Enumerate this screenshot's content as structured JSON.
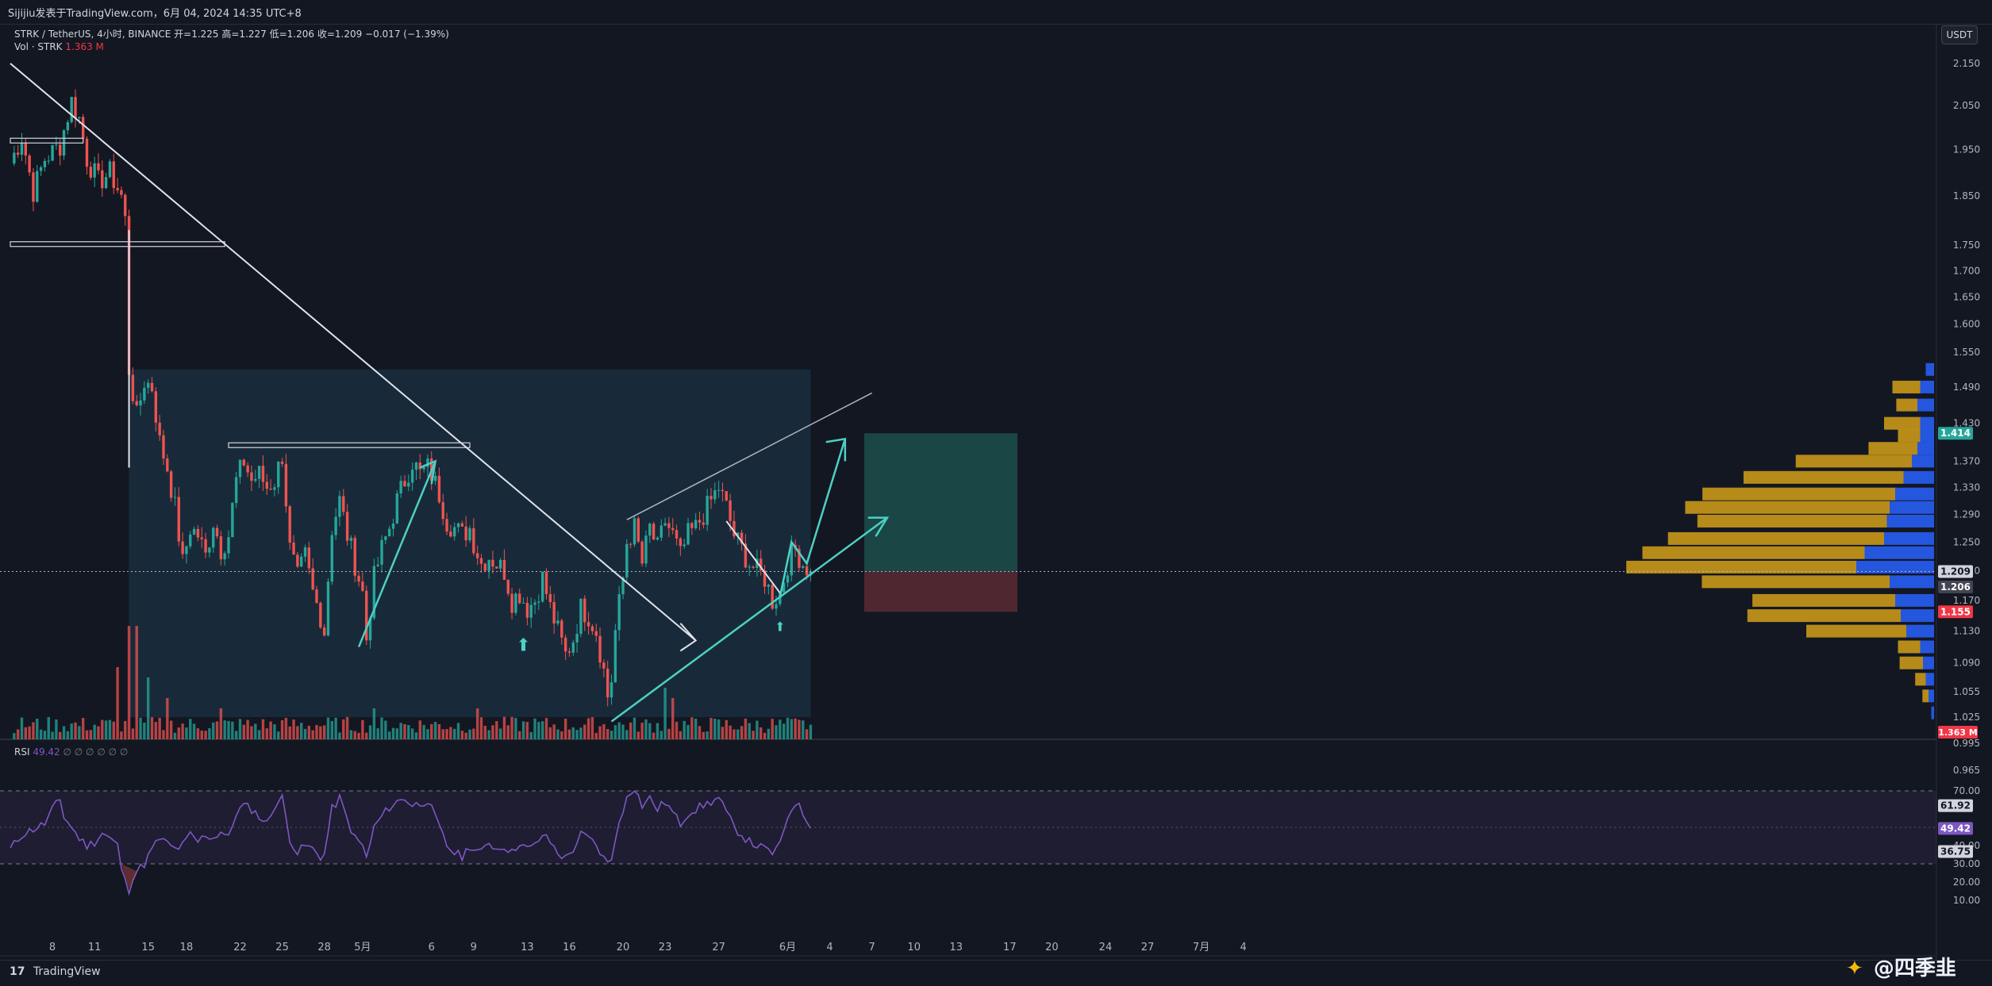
{
  "header": {
    "published": "Sijijiu发表于TradingView.com，6月 04, 2024 14:35 UTC+8"
  },
  "legend": {
    "symbol": "STRK / TetherUS, 4小时, BINANCE",
    "ohlc": "开=1.225  高=1.227  低=1.206  收=1.209  −0.017 (−1.39%)",
    "vol_label": "Vol · STRK",
    "vol_value": "1.363 M",
    "rsi_label": "RSI",
    "rsi_value": "49.42",
    "rsi_extra": "∅  ∅  ∅  ∅  ∅  ∅"
  },
  "currency_button": "USDT",
  "brand": {
    "logo": "17",
    "name": "TradingView"
  },
  "watermark": {
    "icon": "binance-icon",
    "text": "@四季韭"
  },
  "colors": {
    "background": "#131722",
    "up": "#26a69a",
    "down": "#ef5350",
    "range_box": "#1e3a4c",
    "trend_line": "#e0e3eb",
    "cyan_line": "#4dd0c4",
    "rsi_line": "#7e57c2",
    "vp_blue": "#2962ff",
    "vp_gold": "#d4a017",
    "tp_zone": "#1d4f4c",
    "sl_zone": "#5a2a33"
  },
  "chart_data": [
    {
      "type": "candlestick",
      "title": "STRK / TetherUS, 4小时, BINANCE",
      "ylim": [
        0.955,
        2.2
      ],
      "y_scale": "log",
      "y_ticks": [
        "2.150",
        "2.050",
        "1.950",
        "1.850",
        "1.750",
        "1.700",
        "1.650",
        "1.600",
        "1.550",
        "1.490",
        "1.430",
        "1.370",
        "1.330",
        "1.290",
        "1.250",
        "1.210",
        "1.170",
        "1.130",
        "1.090",
        "1.055",
        "1.025",
        "0.995",
        "0.965"
      ],
      "x_ticks": [
        {
          "label": "8",
          "idx": 11
        },
        {
          "label": "11",
          "idx": 22
        },
        {
          "label": "15",
          "idx": 36
        },
        {
          "label": "18",
          "idx": 46
        },
        {
          "label": "22",
          "idx": 60
        },
        {
          "label": "25",
          "idx": 71
        },
        {
          "label": "28",
          "idx": 82
        },
        {
          "label": "5月",
          "idx": 92
        },
        {
          "label": "6",
          "idx": 110
        },
        {
          "label": "9",
          "idx": 121
        },
        {
          "label": "13",
          "idx": 135
        },
        {
          "label": "16",
          "idx": 146
        },
        {
          "label": "20",
          "idx": 160
        },
        {
          "label": "23",
          "idx": 171
        },
        {
          "label": "27",
          "idx": 185
        },
        {
          "label": "6月",
          "idx": 203
        },
        {
          "label": "4",
          "idx": 214
        },
        {
          "label": "7",
          "idx": 225
        },
        {
          "label": "10",
          "idx": 236
        },
        {
          "label": "13",
          "idx": 247
        },
        {
          "label": "17",
          "idx": 261
        },
        {
          "label": "20",
          "idx": 272
        },
        {
          "label": "24",
          "idx": 286
        },
        {
          "label": "27",
          "idx": 297
        },
        {
          "label": "7月",
          "idx": 311
        },
        {
          "label": "4",
          "idx": 322
        }
      ],
      "price_labels": [
        {
          "value": "1.414",
          "price": 1.414,
          "color": "#26a69a"
        },
        {
          "value": "1.209",
          "price": 1.209,
          "color": "#d1d4dc",
          "text_color": "#131722"
        },
        {
          "value": "1.206",
          "price": 1.188,
          "color": "#434651"
        },
        {
          "value": "1.155",
          "price": 1.155,
          "color": "#f23645"
        }
      ],
      "close_anchors": [
        [
          0,
          1.92
        ],
        [
          3,
          1.98
        ],
        [
          6,
          1.86
        ],
        [
          9,
          1.93
        ],
        [
          13,
          1.96
        ],
        [
          16,
          2.06
        ],
        [
          18,
          2.02
        ],
        [
          20,
          1.93
        ],
        [
          23,
          1.88
        ],
        [
          26,
          1.9
        ],
        [
          29,
          1.85
        ],
        [
          30,
          1.8
        ],
        [
          31,
          1.52
        ],
        [
          33,
          1.44
        ],
        [
          35,
          1.5
        ],
        [
          37,
          1.49
        ],
        [
          39,
          1.4
        ],
        [
          41,
          1.36
        ],
        [
          43,
          1.3
        ],
        [
          45,
          1.22
        ],
        [
          47,
          1.27
        ],
        [
          49,
          1.26
        ],
        [
          51,
          1.23
        ],
        [
          53,
          1.28
        ],
        [
          55,
          1.24
        ],
        [
          57,
          1.26
        ],
        [
          59,
          1.34
        ],
        [
          61,
          1.37
        ],
        [
          63,
          1.34
        ],
        [
          65,
          1.35
        ],
        [
          67,
          1.33
        ],
        [
          69,
          1.34
        ],
        [
          71,
          1.38
        ],
        [
          73,
          1.24
        ],
        [
          75,
          1.2
        ],
        [
          77,
          1.23
        ],
        [
          79,
          1.18
        ],
        [
          81,
          1.15
        ],
        [
          82,
          1.13
        ],
        [
          84,
          1.27
        ],
        [
          86,
          1.31
        ],
        [
          88,
          1.26
        ],
        [
          90,
          1.22
        ],
        [
          92,
          1.18
        ],
        [
          93,
          1.12
        ],
        [
          95,
          1.2
        ],
        [
          97,
          1.24
        ],
        [
          99,
          1.27
        ],
        [
          101,
          1.31
        ],
        [
          103,
          1.34
        ],
        [
          105,
          1.37
        ],
        [
          107,
          1.35
        ],
        [
          109,
          1.36
        ],
        [
          110,
          1.35
        ],
        [
          112,
          1.32
        ],
        [
          114,
          1.28
        ],
        [
          116,
          1.27
        ],
        [
          118,
          1.26
        ],
        [
          120,
          1.27
        ],
        [
          121,
          1.25
        ],
        [
          123,
          1.22
        ],
        [
          125,
          1.23
        ],
        [
          127,
          1.22
        ],
        [
          129,
          1.21
        ],
        [
          131,
          1.17
        ],
        [
          133,
          1.18
        ],
        [
          135,
          1.16
        ],
        [
          137,
          1.17
        ],
        [
          139,
          1.2
        ],
        [
          141,
          1.16
        ],
        [
          143,
          1.13
        ],
        [
          145,
          1.1
        ],
        [
          147,
          1.12
        ],
        [
          149,
          1.16
        ],
        [
          151,
          1.15
        ],
        [
          153,
          1.13
        ],
        [
          155,
          1.08
        ],
        [
          156,
          1.05
        ],
        [
          157,
          1.07
        ],
        [
          158,
          1.13
        ],
        [
          160,
          1.2
        ],
        [
          161,
          1.25
        ],
        [
          163,
          1.27
        ],
        [
          165,
          1.22
        ],
        [
          167,
          1.27
        ],
        [
          169,
          1.24
        ],
        [
          171,
          1.28
        ],
        [
          173,
          1.26
        ],
        [
          175,
          1.23
        ],
        [
          177,
          1.26
        ],
        [
          179,
          1.27
        ],
        [
          181,
          1.29
        ],
        [
          183,
          1.31
        ],
        [
          185,
          1.33
        ],
        [
          187,
          1.3
        ],
        [
          189,
          1.26
        ],
        [
          191,
          1.24
        ],
        [
          193,
          1.22
        ],
        [
          195,
          1.21
        ],
        [
          197,
          1.2
        ],
        [
          199,
          1.17
        ],
        [
          201,
          1.18
        ],
        [
          203,
          1.22
        ],
        [
          205,
          1.24
        ],
        [
          207,
          1.22
        ],
        [
          209,
          1.209
        ]
      ],
      "volume": {
        "label": "Vol · STRK",
        "last": "1.363 M",
        "spikes": [
          [
            28,
            7
          ],
          [
            31,
            11
          ],
          [
            33,
            11
          ],
          [
            36,
            6
          ],
          [
            41,
            4
          ],
          [
            55,
            3
          ],
          [
            95,
            3
          ],
          [
            122,
            3
          ],
          [
            171,
            5
          ],
          [
            173,
            4
          ]
        ]
      },
      "zones": [
        {
          "name": "consolidation-range",
          "idx_from": 31,
          "idx_to": 209,
          "price_from": 1.025,
          "price_to": 1.52
        },
        {
          "name": "take-profit-zone",
          "idx_from": 223,
          "idx_to": 263,
          "price_from": 1.209,
          "price_to": 1.414
        },
        {
          "name": "stop-loss-zone",
          "idx_from": 223,
          "idx_to": 263,
          "price_from": 1.155,
          "price_to": 1.209
        }
      ],
      "resistance_boxes": [
        {
          "idx_from": 0,
          "idx_to": 19,
          "price": 1.97
        },
        {
          "idx_from": 0,
          "idx_to": 56,
          "price": 1.752
        },
        {
          "idx_from": 57,
          "idx_to": 120,
          "price": 1.395
        }
      ],
      "volume_profile": [
        [
          1.52,
          0.03,
          0.0
        ],
        [
          1.49,
          0.05,
          0.12
        ],
        [
          1.46,
          0.06,
          0.1
        ],
        [
          1.43,
          0.05,
          0.15
        ],
        [
          1.41,
          0.05,
          0.1
        ],
        [
          1.39,
          0.06,
          0.2
        ],
        [
          1.37,
          0.08,
          0.45
        ],
        [
          1.345,
          0.11,
          0.62
        ],
        [
          1.32,
          0.14,
          0.75
        ],
        [
          1.3,
          0.16,
          0.8
        ],
        [
          1.28,
          0.17,
          0.75
        ],
        [
          1.255,
          0.18,
          0.85
        ],
        [
          1.235,
          0.25,
          0.9
        ],
        [
          1.215,
          0.28,
          0.94
        ],
        [
          1.195,
          0.16,
          0.74
        ],
        [
          1.17,
          0.14,
          0.57
        ],
        [
          1.15,
          0.12,
          0.6
        ],
        [
          1.13,
          0.1,
          0.4
        ],
        [
          1.11,
          0.05,
          0.1
        ],
        [
          1.09,
          0.04,
          0.1
        ],
        [
          1.07,
          0.03,
          0.05
        ],
        [
          1.05,
          0.02,
          0.03
        ],
        [
          1.03,
          0.01,
          0.0
        ]
      ]
    },
    {
      "type": "line",
      "title": "RSI",
      "ylim": [
        10,
        75
      ],
      "y_ticks": [
        "70.00",
        "40.00",
        "30.00",
        "20.00",
        "10.00"
      ],
      "bands": [
        70,
        30
      ],
      "price_labels": [
        {
          "value": "61.92",
          "price": 61.92,
          "color": "#d1d4dc",
          "text_color": "#131722"
        },
        {
          "value": "49.42",
          "price": 49.42,
          "color": "#7e57c2"
        },
        {
          "value": "36.75",
          "price": 36.75,
          "color": "#d1d4dc",
          "text_color": "#131722"
        }
      ],
      "anchors": [
        [
          0,
          38
        ],
        [
          3,
          46
        ],
        [
          6,
          49
        ],
        [
          9,
          52
        ],
        [
          11,
          60
        ],
        [
          13,
          65
        ],
        [
          14,
          56
        ],
        [
          16,
          50
        ],
        [
          18,
          44
        ],
        [
          20,
          40
        ],
        [
          22,
          42
        ],
        [
          24,
          47
        ],
        [
          26,
          44
        ],
        [
          28,
          40
        ],
        [
          29,
          28
        ],
        [
          30,
          20
        ],
        [
          31,
          16
        ],
        [
          32,
          23
        ],
        [
          33,
          26
        ],
        [
          35,
          30
        ],
        [
          37,
          38
        ],
        [
          39,
          44
        ],
        [
          41,
          41
        ],
        [
          43,
          38
        ],
        [
          45,
          40
        ],
        [
          47,
          46
        ],
        [
          49,
          42
        ],
        [
          51,
          46
        ],
        [
          53,
          44
        ],
        [
          55,
          48
        ],
        [
          57,
          44
        ],
        [
          59,
          58
        ],
        [
          61,
          62
        ],
        [
          63,
          60
        ],
        [
          65,
          56
        ],
        [
          67,
          52
        ],
        [
          69,
          62
        ],
        [
          71,
          66
        ],
        [
          73,
          44
        ],
        [
          75,
          36
        ],
        [
          77,
          40
        ],
        [
          79,
          38
        ],
        [
          81,
          34
        ],
        [
          82,
          35
        ],
        [
          84,
          60
        ],
        [
          86,
          66
        ],
        [
          88,
          54
        ],
        [
          90,
          44
        ],
        [
          92,
          40
        ],
        [
          93,
          33
        ],
        [
          95,
          50
        ],
        [
          97,
          56
        ],
        [
          99,
          61
        ],
        [
          101,
          64
        ],
        [
          103,
          66
        ],
        [
          105,
          62
        ],
        [
          107,
          63
        ],
        [
          109,
          65
        ],
        [
          110,
          60
        ],
        [
          112,
          50
        ],
        [
          114,
          40
        ],
        [
          116,
          36
        ],
        [
          118,
          34
        ],
        [
          120,
          40
        ],
        [
          121,
          38
        ],
        [
          123,
          36
        ],
        [
          125,
          42
        ],
        [
          127,
          38
        ],
        [
          129,
          40
        ],
        [
          131,
          36
        ],
        [
          133,
          42
        ],
        [
          135,
          38
        ],
        [
          137,
          40
        ],
        [
          139,
          46
        ],
        [
          141,
          42
        ],
        [
          143,
          36
        ],
        [
          145,
          33
        ],
        [
          147,
          38
        ],
        [
          149,
          46
        ],
        [
          151,
          44
        ],
        [
          153,
          40
        ],
        [
          155,
          33
        ],
        [
          156,
          30
        ],
        [
          157,
          33
        ],
        [
          158,
          45
        ],
        [
          160,
          58
        ],
        [
          161,
          68
        ],
        [
          163,
          72
        ],
        [
          165,
          62
        ],
        [
          167,
          66
        ],
        [
          169,
          60
        ],
        [
          171,
          64
        ],
        [
          173,
          58
        ],
        [
          175,
          52
        ],
        [
          177,
          58
        ],
        [
          179,
          60
        ],
        [
          181,
          62
        ],
        [
          183,
          64
        ],
        [
          185,
          66
        ],
        [
          187,
          58
        ],
        [
          189,
          50
        ],
        [
          191,
          46
        ],
        [
          193,
          42
        ],
        [
          195,
          40
        ],
        [
          197,
          38
        ],
        [
          199,
          36
        ],
        [
          201,
          40
        ],
        [
          203,
          56
        ],
        [
          205,
          64
        ],
        [
          207,
          58
        ],
        [
          209,
          49.42
        ]
      ]
    }
  ]
}
